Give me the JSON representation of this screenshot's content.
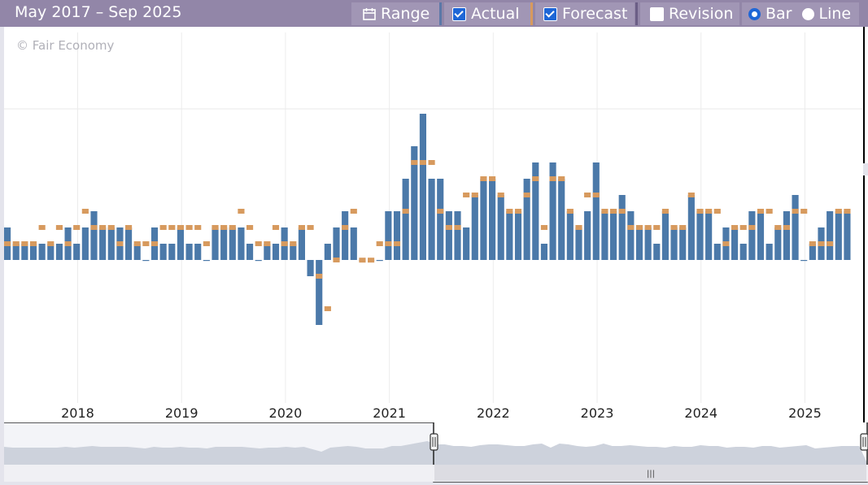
{
  "toolbar": {
    "date_range": "May 2017 – Sep 2025",
    "range_label": "Range",
    "range_icon": "calendar-icon",
    "actual_label": "Actual",
    "actual_checked": true,
    "forecast_label": "Forecast",
    "forecast_checked": true,
    "revision_label": "Revision",
    "revision_checked": false,
    "bar_label": "Bar",
    "line_label": "Line",
    "chart_mode": "Bar"
  },
  "watermark": "© Fair Economy",
  "colors": {
    "actual": "#4b79a9",
    "forecast": "#d79a5e",
    "toolbar": "#9286a8",
    "navigator_fill": "#cdd2dc",
    "navigator_bg": "#eceef3"
  },
  "chart_data": {
    "type": "bar",
    "start": "2017-05",
    "end": "2025-09",
    "x_tick_labels": [
      "2018",
      "2019",
      "2020",
      "2021",
      "2022",
      "2023",
      "2024",
      "2025"
    ],
    "ylim": [
      -0.8,
      1.4
    ],
    "grid": true,
    "series": [
      {
        "name": "Actual",
        "values": [
          0.2,
          0.1,
          0.1,
          0.1,
          0.1,
          0.1,
          0.1,
          0.2,
          0.1,
          0.2,
          0.3,
          0.2,
          0.2,
          0.2,
          0.2,
          0.1,
          0.0,
          0.2,
          0.1,
          0.1,
          0.2,
          0.1,
          0.1,
          0.0,
          0.2,
          0.2,
          0.2,
          0.2,
          0.1,
          0.0,
          0.1,
          0.1,
          0.2,
          0.1,
          0.2,
          -0.1,
          -0.4,
          0.1,
          0.2,
          0.3,
          0.2,
          0.0,
          0.0,
          0.0,
          0.3,
          0.3,
          0.5,
          0.7,
          0.9,
          0.5,
          0.5,
          0.3,
          0.3,
          0.2,
          0.4,
          0.5,
          0.5,
          0.4,
          0.3,
          0.3,
          0.5,
          0.6,
          0.1,
          0.6,
          0.5,
          0.3,
          0.2,
          0.3,
          0.6,
          0.3,
          0.3,
          0.4,
          0.3,
          0.2,
          0.2,
          0.1,
          0.3,
          0.2,
          0.2,
          0.4,
          0.3,
          0.3,
          0.1,
          0.2,
          0.2,
          0.1,
          0.3,
          0.3,
          0.1,
          0.2,
          0.3,
          0.4,
          0.0,
          0.1,
          0.2,
          0.3,
          0.3,
          0.3
        ]
      },
      {
        "name": "Forecast",
        "values": [
          0.1,
          0.1,
          0.1,
          0.1,
          0.2,
          0.1,
          0.2,
          0.1,
          0.2,
          0.3,
          0.2,
          0.2,
          0.2,
          0.1,
          0.2,
          0.1,
          0.1,
          0.1,
          0.2,
          0.2,
          0.2,
          0.2,
          0.2,
          0.1,
          0.2,
          0.2,
          0.2,
          0.3,
          0.2,
          0.1,
          0.1,
          0.2,
          0.1,
          0.1,
          0.2,
          0.2,
          -0.1,
          -0.3,
          0.0,
          0.2,
          0.3,
          -0.001,
          -0.001,
          0.1,
          0.1,
          0.1,
          0.3,
          0.6,
          0.6,
          0.6,
          0.3,
          0.2,
          0.2,
          0.4,
          0.4,
          0.5,
          0.5,
          0.4,
          0.3,
          0.3,
          0.4,
          0.5,
          0.2,
          0.5,
          0.5,
          0.3,
          0.2,
          0.4,
          0.4,
          0.3,
          0.3,
          0.3,
          0.2,
          0.2,
          0.2,
          0.2,
          0.3,
          0.2,
          0.2,
          0.4,
          0.3,
          0.3,
          0.3,
          0.1,
          0.2,
          0.2,
          0.2,
          0.3,
          0.3,
          0.2,
          0.2,
          0.3,
          0.3,
          0.1,
          0.1,
          0.1,
          0.3,
          0.3
        ]
      }
    ]
  },
  "navigator": {
    "handle_grip": "|||"
  }
}
